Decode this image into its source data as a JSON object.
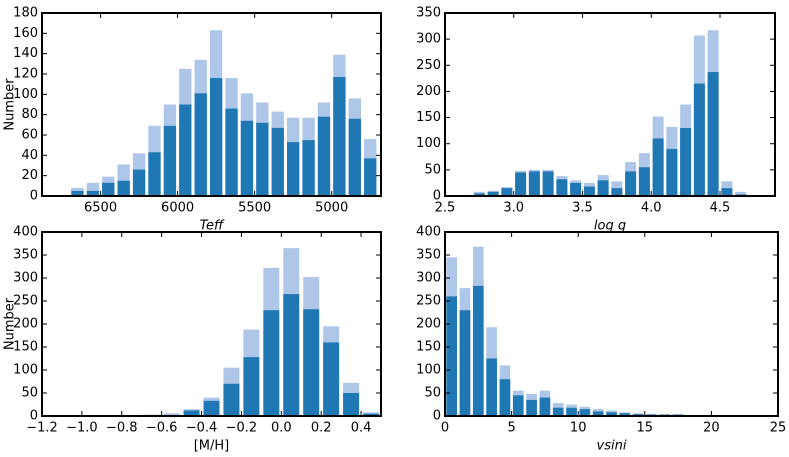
{
  "chart_data": [
    {
      "type": "histogram",
      "xlabel": "Teff",
      "ylabel": "Number",
      "bins": [
        6700,
        6600,
        6500,
        6400,
        6300,
        6200,
        6100,
        6000,
        5900,
        5800,
        5700,
        5600,
        5500,
        5400,
        5300,
        5200,
        5100,
        5000,
        4900,
        4800,
        4700
      ],
      "series": [
        {
          "color": "#aec7e8",
          "values": [
            8,
            13,
            19,
            31,
            42,
            69,
            90,
            125,
            134,
            163,
            116,
            101,
            92,
            83,
            77,
            77,
            92,
            139,
            96,
            56
          ]
        },
        {
          "color": "#1f77b4",
          "values": [
            5,
            5,
            13,
            15,
            26,
            43,
            69,
            90,
            101,
            116,
            86,
            74,
            72,
            67,
            53,
            55,
            78,
            117,
            76,
            37
          ]
        }
      ],
      "xlim": [
        6880,
        4680
      ],
      "xticks": [
        6500,
        6000,
        5500,
        5000
      ],
      "ylim": [
        0,
        180
      ],
      "yticks": [
        0,
        20,
        40,
        60,
        80,
        100,
        120,
        140,
        160,
        180
      ]
    },
    {
      "type": "histogram",
      "xlabel": "log g",
      "bins": [
        2.7,
        2.8,
        2.9,
        3.0,
        3.1,
        3.2,
        3.3,
        3.4,
        3.5,
        3.6,
        3.7,
        3.8,
        3.9,
        4.0,
        4.1,
        4.2,
        4.3,
        4.4,
        4.5,
        4.6,
        4.7
      ],
      "series": [
        {
          "color": "#aec7e8",
          "values": [
            8,
            10,
            17,
            48,
            50,
            50,
            38,
            30,
            25,
            40,
            28,
            65,
            82,
            152,
            132,
            175,
            307,
            317,
            28,
            8
          ]
        },
        {
          "color": "#1f77b4",
          "values": [
            5,
            8,
            15,
            45,
            47,
            47,
            32,
            25,
            18,
            30,
            15,
            47,
            55,
            110,
            90,
            130,
            215,
            237,
            15,
            3
          ]
        }
      ],
      "xlim": [
        2.5,
        4.9
      ],
      "xticks": [
        2.5,
        {
          "value": 3,
          "label": "3.0"
        },
        3.5,
        {
          "value": 4,
          "label": "4.0"
        },
        4.5
      ],
      "ylim": [
        0,
        350
      ],
      "yticks": [
        0,
        50,
        100,
        150,
        200,
        250,
        300,
        350
      ]
    },
    {
      "type": "histogram",
      "xlabel": "[M/H]",
      "ylabel": "Number",
      "bins": [
        -0.8,
        -0.7,
        -0.6,
        -0.5,
        -0.4,
        -0.3,
        -0.2,
        -0.1,
        0.0,
        0.1,
        0.2,
        0.3,
        0.4,
        0.5
      ],
      "series": [
        {
          "color": "#aec7e8",
          "values": [
            2,
            3,
            6,
            15,
            40,
            105,
            188,
            322,
            365,
            302,
            195,
            72,
            8
          ]
        },
        {
          "color": "#1f77b4",
          "values": [
            1,
            1,
            2,
            12,
            33,
            70,
            128,
            230,
            265,
            232,
            160,
            50,
            5
          ]
        }
      ],
      "xlim": [
        -1.2,
        0.5
      ],
      "xticks": [
        {
          "value": -1.2,
          "label": "−1.2"
        },
        {
          "value": -1.0,
          "label": "−1.0"
        },
        {
          "value": -0.8,
          "label": "−0.8"
        },
        {
          "value": -0.6,
          "label": "−0.6"
        },
        {
          "value": -0.4,
          "label": "−0.4"
        },
        {
          "value": -0.2,
          "label": "−0.2"
        },
        {
          "value": 0,
          "label": "0.0"
        },
        0.2,
        0.4
      ],
      "ylim": [
        0,
        400
      ],
      "yticks": [
        0,
        50,
        100,
        150,
        200,
        250,
        300,
        350,
        400
      ]
    },
    {
      "type": "histogram",
      "xlabel": "vsini",
      "bins": [
        0,
        1,
        2,
        3,
        4,
        5,
        6,
        7,
        8,
        9,
        10,
        11,
        12,
        13,
        14,
        15,
        16,
        17,
        18
      ],
      "series": [
        {
          "color": "#aec7e8",
          "values": [
            345,
            278,
            368,
            193,
            110,
            55,
            48,
            55,
            28,
            25,
            20,
            15,
            12,
            8,
            6,
            5,
            4,
            4
          ]
        },
        {
          "color": "#1f77b4",
          "values": [
            260,
            230,
            283,
            125,
            80,
            45,
            35,
            40,
            18,
            18,
            15,
            10,
            8,
            6,
            4,
            3,
            3,
            3
          ]
        }
      ],
      "xlim": [
        0,
        25
      ],
      "xticks": [
        0,
        5,
        10,
        15,
        20,
        25
      ],
      "ylim": [
        0,
        400
      ],
      "yticks": [
        0,
        50,
        100,
        150,
        200,
        250,
        300,
        350,
        400
      ]
    }
  ]
}
